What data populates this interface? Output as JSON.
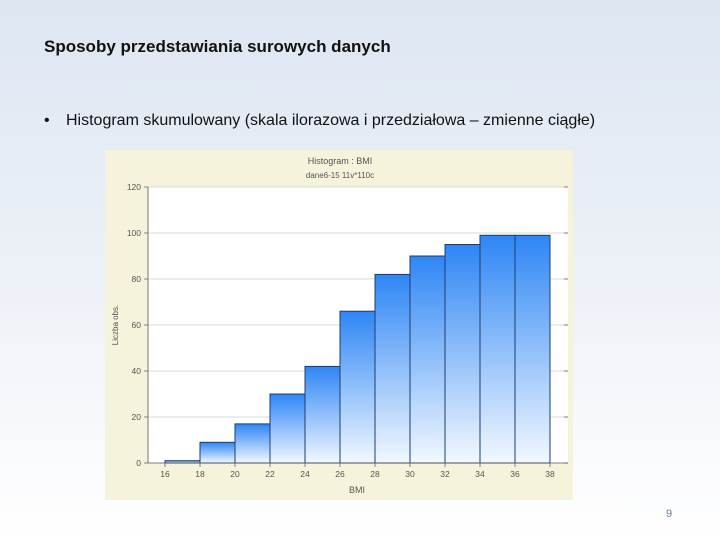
{
  "slide": {
    "title": "Sposoby przedstawiania surowych danych",
    "bullet": "Histogram skumulowany (skala ilorazowa i przedziałowa – zmienne ciągłe)",
    "page_number": "9"
  },
  "chart_data": {
    "type": "bar",
    "title": "Histogram : BMI",
    "subtitle": "dane6-15 11v*110c",
    "xlabel": "BMI",
    "ylabel": "Liczba obs.",
    "x_ticks": [
      "16",
      "18",
      "20",
      "22",
      "24",
      "26",
      "28",
      "30",
      "32",
      "34",
      "36",
      "38"
    ],
    "bins": [
      [
        16,
        18
      ],
      [
        18,
        20
      ],
      [
        20,
        22
      ],
      [
        22,
        24
      ],
      [
        24,
        26
      ],
      [
        26,
        28
      ],
      [
        28,
        30
      ],
      [
        30,
        32
      ],
      [
        32,
        34
      ],
      [
        34,
        36
      ],
      [
        36,
        38
      ]
    ],
    "values": [
      1,
      9,
      17,
      30,
      42,
      66,
      82,
      90,
      95,
      99,
      99
    ],
    "ylim": [
      0,
      120
    ],
    "y_ticks": [
      0,
      20,
      40,
      60,
      80,
      100,
      120
    ],
    "grid": true,
    "colors": {
      "bar_top": "#2e86f5",
      "bar_bottom": "#f2f8ff",
      "bar_edge": "#1c3d70",
      "background": "#f6f3dc",
      "plot": "#ffffff"
    }
  }
}
